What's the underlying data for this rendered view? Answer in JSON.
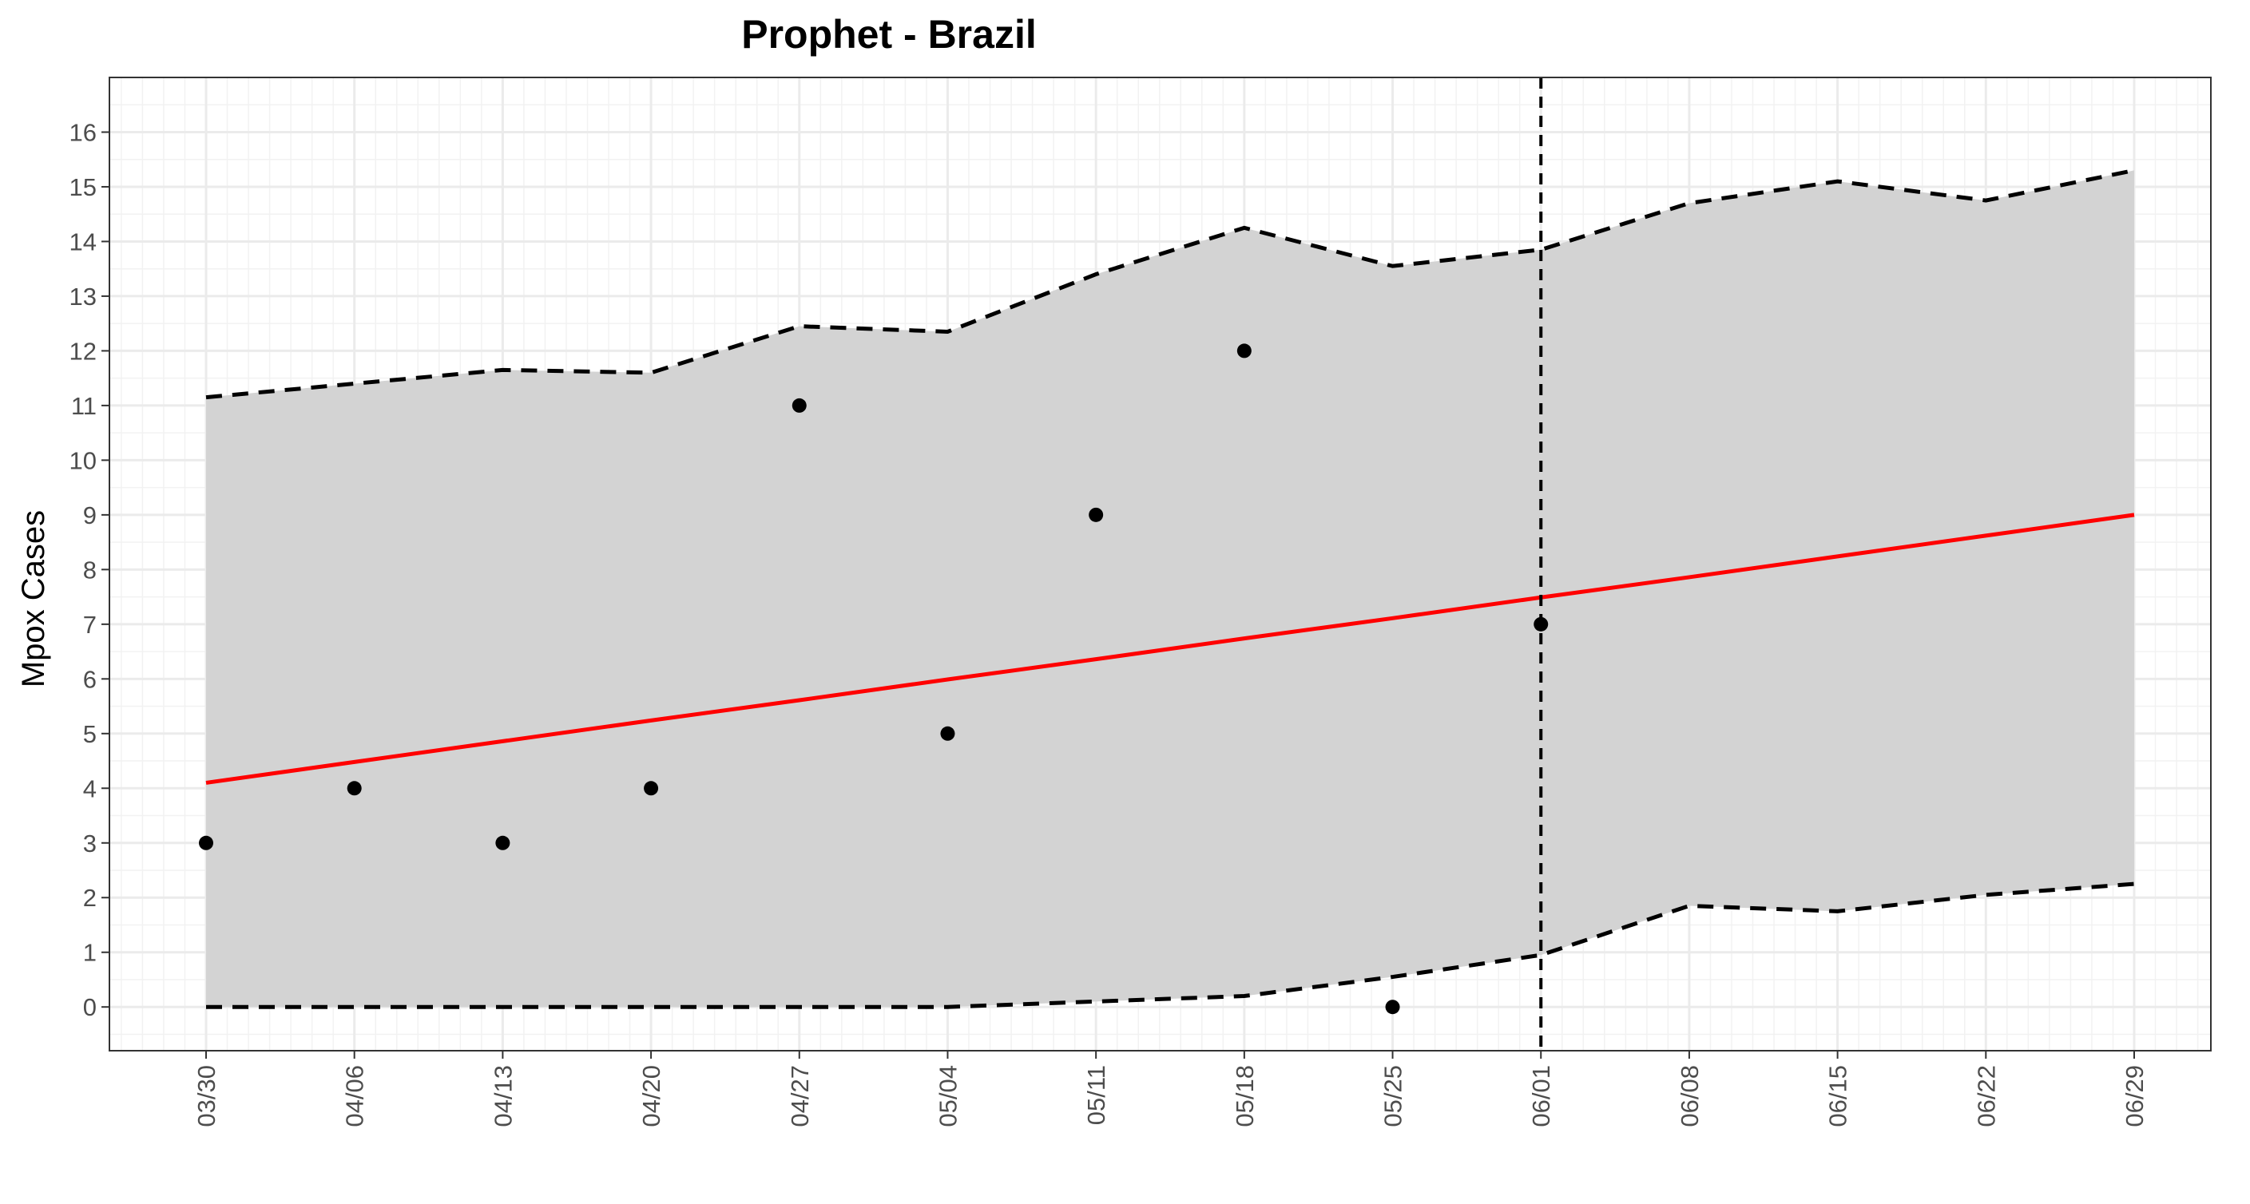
{
  "chart_data": {
    "type": "line",
    "title": "Prophet - Brazil",
    "xlabel": "",
    "ylabel": "Mpox Cases",
    "categories": [
      "03/30",
      "04/06",
      "04/13",
      "04/20",
      "04/27",
      "05/04",
      "05/11",
      "05/18",
      "05/25",
      "06/01",
      "06/08",
      "06/15",
      "06/22",
      "06/29"
    ],
    "ylim": [
      -0.8,
      17
    ],
    "yticks": [
      0,
      1,
      2,
      3,
      4,
      5,
      6,
      7,
      8,
      9,
      10,
      11,
      12,
      13,
      14,
      15,
      16
    ],
    "series": [
      {
        "role": "observed",
        "style": "points",
        "color": "#000000",
        "values": [
          3,
          4,
          3,
          4,
          11,
          5,
          9,
          12,
          0,
          7,
          null,
          null,
          null,
          null
        ]
      },
      {
        "role": "forecast",
        "style": "solid-line",
        "color": "#ff0000",
        "values": [
          4.1,
          4.48,
          4.86,
          5.24,
          5.61,
          5.99,
          6.36,
          6.74,
          7.11,
          7.49,
          7.86,
          8.24,
          8.62,
          9.0
        ]
      },
      {
        "role": "upper",
        "style": "dashed-line",
        "color": "#000000",
        "values": [
          11.15,
          11.4,
          11.65,
          11.6,
          12.45,
          12.35,
          13.4,
          14.25,
          13.55,
          13.85,
          14.7,
          15.1,
          14.75,
          15.3
        ]
      },
      {
        "role": "lower",
        "style": "dashed-line",
        "color": "#000000",
        "values": [
          0,
          0,
          0,
          0,
          0,
          0,
          0.1,
          0.2,
          0.55,
          0.95,
          1.85,
          1.75,
          2.05,
          2.25
        ]
      }
    ],
    "band": {
      "between": [
        "lower",
        "upper"
      ],
      "fill": "#d3d3d3"
    },
    "vline": {
      "category": "06/01",
      "style": "dashed",
      "color": "#000000"
    },
    "grid": true,
    "panel_border": true,
    "legend": "none",
    "x_tick_rotation": 90
  }
}
